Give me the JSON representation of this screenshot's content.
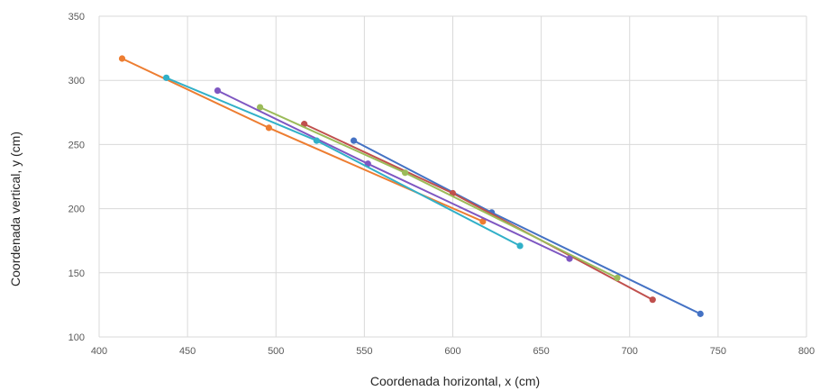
{
  "chart_data": {
    "type": "line",
    "xlabel": "Coordenada horizontal, x (cm)",
    "ylabel": "Coordenada vertical, y (cm)",
    "xlim": [
      400,
      800
    ],
    "ylim": [
      100,
      350
    ],
    "xticks": [
      400,
      450,
      500,
      550,
      600,
      650,
      700,
      750,
      800
    ],
    "yticks": [
      100,
      150,
      200,
      250,
      300,
      350
    ],
    "grid": true,
    "series": [
      {
        "color": "#4472C4",
        "points": [
          [
            544,
            253
          ],
          [
            622,
            197
          ],
          [
            740,
            118
          ]
        ]
      },
      {
        "color": "#ED7D31",
        "points": [
          [
            413,
            317
          ],
          [
            496,
            263
          ],
          [
            617,
            190
          ]
        ]
      },
      {
        "color": "#C0504D",
        "points": [
          [
            516,
            266
          ],
          [
            600,
            212
          ],
          [
            713,
            129
          ]
        ]
      },
      {
        "color": "#9BBB59",
        "points": [
          [
            491,
            279
          ],
          [
            573,
            228
          ],
          [
            693,
            146
          ]
        ]
      },
      {
        "color": "#7E57C2",
        "points": [
          [
            467,
            292
          ],
          [
            552,
            235
          ],
          [
            666,
            161
          ]
        ]
      },
      {
        "color": "#31B0C8",
        "points": [
          [
            438,
            302
          ],
          [
            523,
            253
          ],
          [
            638,
            171
          ]
        ]
      }
    ]
  }
}
